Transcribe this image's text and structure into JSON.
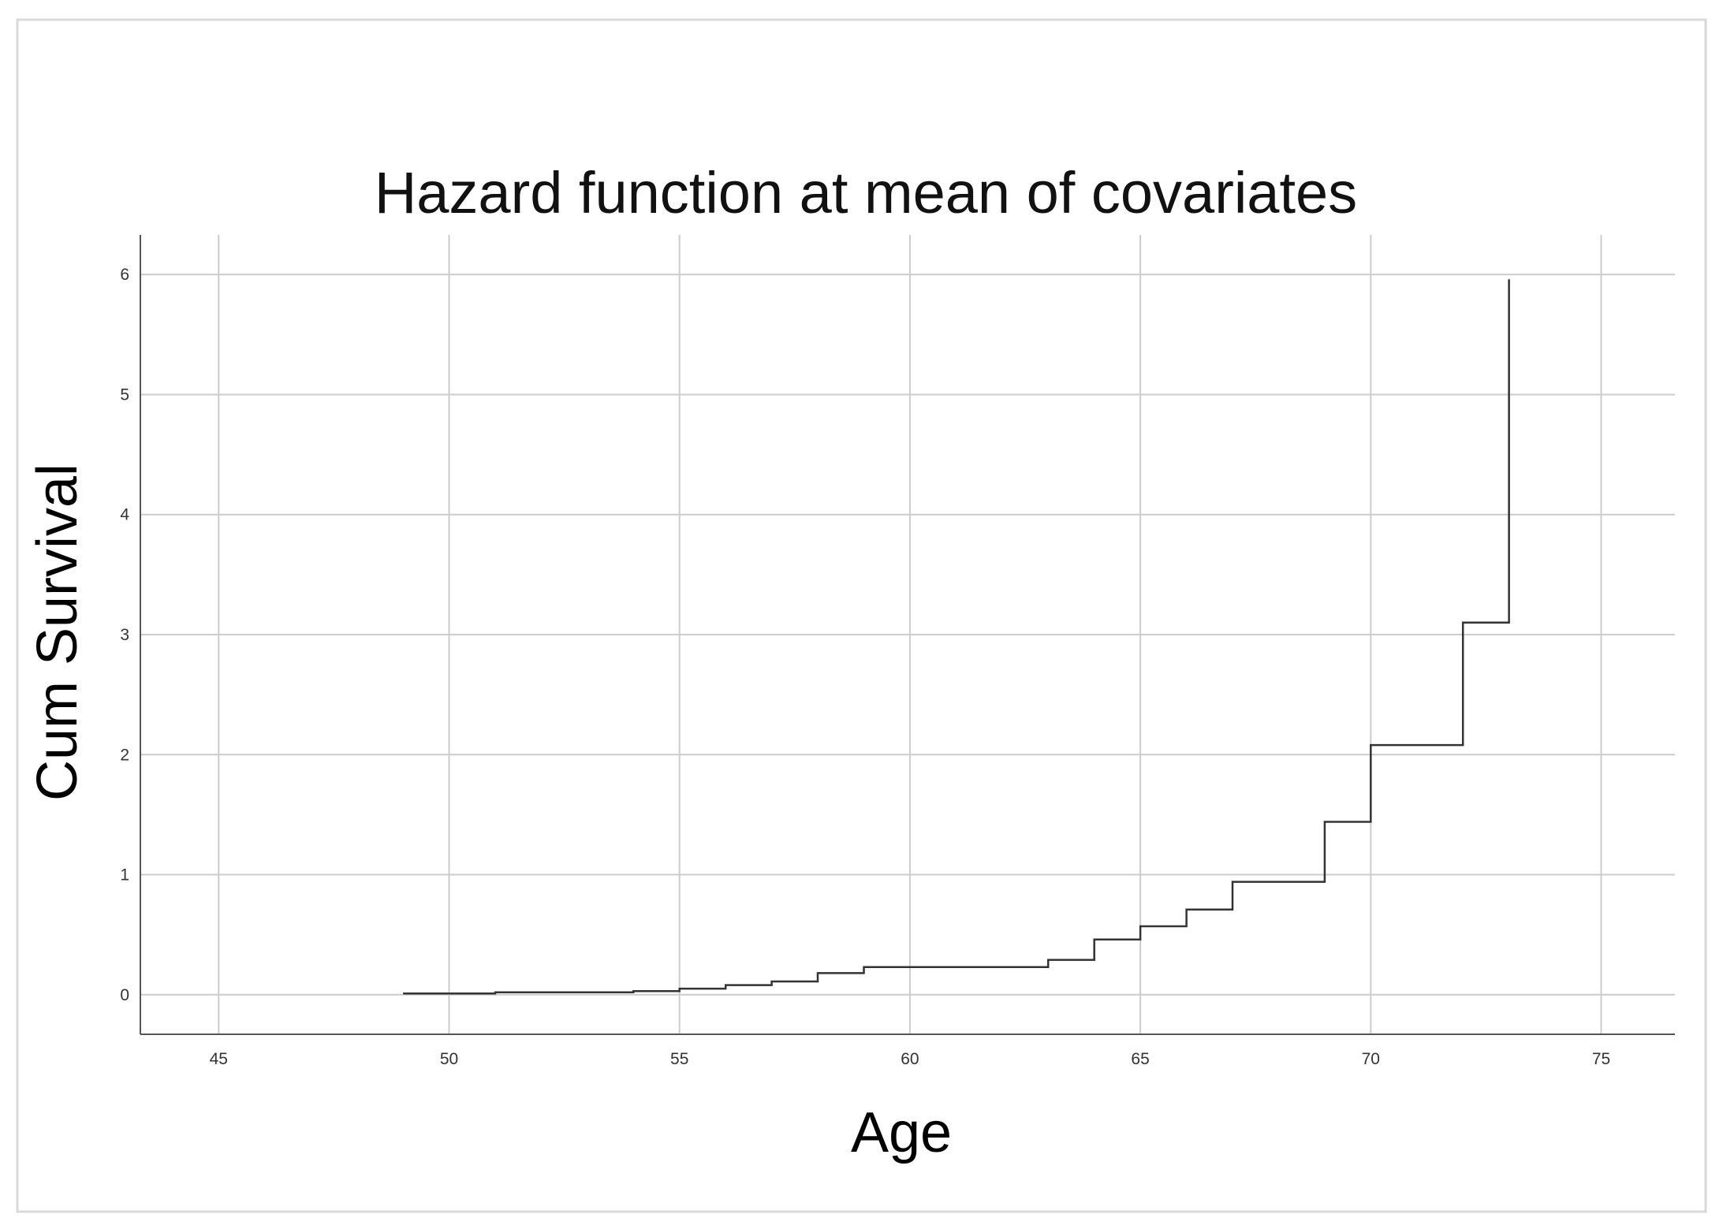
{
  "chart_data": {
    "type": "line",
    "interpolation": "step-after",
    "title": "Hazard function at mean of covariates",
    "xlabel": "Age",
    "ylabel": "Cum Survival",
    "xlim": [
      43.3,
      76.6
    ],
    "ylim": [
      -0.33,
      6.33
    ],
    "x_ticks": [
      45,
      50,
      55,
      60,
      65,
      70,
      75
    ],
    "y_ticks": [
      0,
      1,
      2,
      3,
      4,
      5,
      6
    ],
    "grid": true,
    "x": [
      49,
      51,
      54,
      55,
      56,
      57,
      58,
      59,
      63,
      64,
      65,
      66,
      67,
      69,
      70,
      72,
      73
    ],
    "y": [
      0.01,
      0.02,
      0.03,
      0.05,
      0.08,
      0.11,
      0.18,
      0.23,
      0.29,
      0.46,
      0.57,
      0.71,
      0.94,
      1.44,
      2.08,
      3.1,
      5.96
    ],
    "colors": {
      "line": "#333333",
      "grid": "#cccccc",
      "axis": "#555555",
      "frame": "#d9d9d9"
    }
  }
}
